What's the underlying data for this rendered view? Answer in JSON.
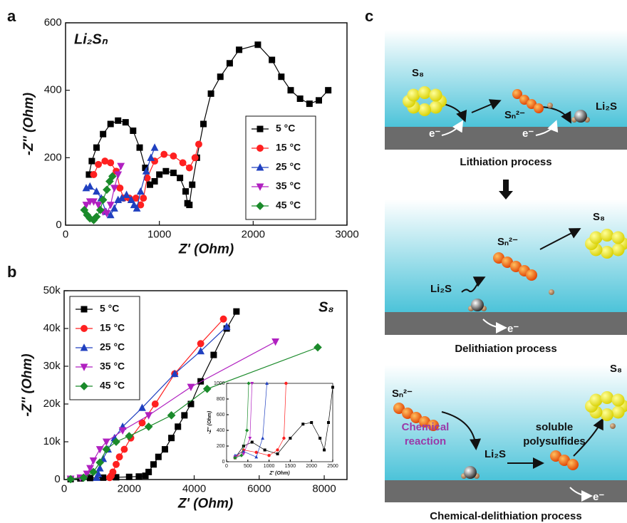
{
  "panel_labels": [
    "a",
    "b",
    "c"
  ],
  "chart_data": [
    {
      "type": "line",
      "annotation": "Li₂Sₙ",
      "x_label": "Z' (Ohm)",
      "y_label": "-Z'' (Ohm)",
      "xlim": [
        0,
        3000
      ],
      "xticks": [
        0,
        1000,
        2000,
        3000
      ],
      "ylim": [
        0,
        600
      ],
      "yticks": [
        0,
        200,
        400,
        600
      ],
      "legend": "right",
      "series": [
        {
          "name": "5 °C",
          "color": "#000000",
          "marker": "square",
          "x": [
            250,
            280,
            330,
            400,
            480,
            560,
            640,
            720,
            790,
            850,
            900,
            950,
            1000,
            1070,
            1150,
            1220,
            1280,
            1300,
            1320,
            1350,
            1400,
            1470,
            1550,
            1650,
            1750,
            1850,
            2050,
            2200,
            2300,
            2400,
            2500,
            2600,
            2700,
            2800
          ],
          "values": [
            150,
            190,
            230,
            270,
            300,
            310,
            305,
            280,
            230,
            170,
            120,
            130,
            150,
            160,
            155,
            140,
            100,
            65,
            60,
            120,
            200,
            300,
            390,
            440,
            480,
            520,
            535,
            490,
            440,
            400,
            375,
            360,
            370,
            400
          ]
        },
        {
          "name": "15 °C",
          "color": "#ff2020",
          "marker": "circle",
          "x": [
            300,
            350,
            420,
            480,
            540,
            580,
            620,
            680,
            750,
            800,
            830,
            870,
            950,
            1050,
            1150,
            1250,
            1320,
            1380,
            1420
          ],
          "values": [
            150,
            180,
            190,
            185,
            160,
            110,
            80,
            80,
            80,
            60,
            80,
            140,
            190,
            210,
            205,
            185,
            170,
            200,
            240
          ]
        },
        {
          "name": "25 °C",
          "color": "#2040c0",
          "marker": "triangle-up",
          "x": [
            220,
            260,
            330,
            380,
            430,
            480,
            520,
            560,
            600,
            650,
            700,
            730,
            760,
            800,
            860,
            910,
            950
          ],
          "values": [
            110,
            115,
            100,
            80,
            40,
            30,
            50,
            75,
            80,
            90,
            75,
            60,
            50,
            100,
            160,
            200,
            230
          ]
        },
        {
          "name": "35 °C",
          "color": "#b020c0",
          "marker": "triangle-down",
          "x": [
            220,
            260,
            300,
            350,
            400,
            440,
            480,
            520,
            560,
            590
          ],
          "values": [
            60,
            70,
            70,
            60,
            40,
            35,
            60,
            110,
            150,
            175
          ]
        },
        {
          "name": "45 °C",
          "color": "#1a8a2a",
          "marker": "diamond",
          "x": [
            200,
            230,
            260,
            300,
            330,
            370,
            400,
            440,
            470,
            500
          ],
          "values": [
            45,
            30,
            20,
            15,
            25,
            45,
            75,
            105,
            130,
            145
          ]
        }
      ]
    },
    {
      "type": "line",
      "annotation": "S₈",
      "x_label": "Z' (Ohm)",
      "y_label": "-Z'' (Ohm)",
      "xlim": [
        0,
        8700
      ],
      "xticks": [
        0,
        2000,
        4000,
        6000,
        8000
      ],
      "ylim": [
        0,
        50000
      ],
      "yticks": [
        0,
        {
          "value": 10000,
          "label": "10k"
        },
        {
          "value": 20000,
          "label": "20k"
        },
        {
          "value": 30000,
          "label": "30k"
        },
        {
          "value": 40000,
          "label": "40k"
        },
        {
          "value": 50000,
          "label": "50k"
        }
      ],
      "legend": "upper left",
      "series": [
        {
          "name": "5 °C",
          "color": "#000000",
          "marker": "square",
          "x": [
            200,
            500,
            800,
            1200,
            1600,
            2000,
            2300,
            2500,
            2600,
            2750,
            2900,
            3100,
            3300,
            3500,
            3700,
            3900,
            4200,
            4600,
            5000,
            5300
          ],
          "values": [
            100,
            300,
            400,
            500,
            600,
            700,
            800,
            1000,
            2000,
            4000,
            6000,
            8000,
            11000,
            14000,
            17000,
            20000,
            26000,
            33000,
            40000,
            44500
          ]
        },
        {
          "name": "15 °C",
          "color": "#ff2020",
          "marker": "circle",
          "x": [
            1400,
            1450,
            1500,
            1600,
            1700,
            1850,
            2050,
            2400,
            2800,
            3400,
            4200,
            4900
          ],
          "values": [
            500,
            1000,
            2000,
            4000,
            6000,
            8000,
            11000,
            15000,
            20000,
            28000,
            36000,
            42500
          ]
        },
        {
          "name": "25 °C",
          "color": "#2040c0",
          "marker": "triangle-up",
          "x": [
            1000,
            1050,
            1100,
            1200,
            1350,
            1550,
            1800,
            2400,
            3400,
            4200,
            5000
          ],
          "values": [
            500,
            1500,
            3000,
            5500,
            8000,
            11000,
            14000,
            19000,
            28000,
            34000,
            40500
          ]
        },
        {
          "name": "35 °C",
          "color": "#b020c0",
          "marker": "triangle-down",
          "x": [
            200,
            500,
            700,
            800,
            900,
            1100,
            1300,
            1800,
            2600,
            3900,
            6500
          ],
          "values": [
            200,
            500,
            1500,
            3000,
            5000,
            8000,
            10000,
            13000,
            17000,
            24500,
            36500
          ]
        },
        {
          "name": "45 °C",
          "color": "#1a8a2a",
          "marker": "diamond",
          "x": [
            200,
            600,
            900,
            1100,
            1300,
            1600,
            2000,
            2600,
            3300,
            4400,
            7800
          ],
          "values": [
            100,
            500,
            2000,
            4500,
            8000,
            10000,
            11500,
            14000,
            17000,
            24000,
            35000
          ]
        }
      ]
    },
    {
      "type": "line",
      "x_label": "Z' (Ohm)",
      "y_label": "-Z'' (Ohm)",
      "xlim": [
        0,
        2500
      ],
      "xticks": [
        0,
        500,
        1000,
        1500,
        2000,
        2500
      ],
      "ylim": [
        0,
        1000
      ],
      "yticks": [
        0,
        200,
        400,
        600,
        800,
        1000
      ],
      "series": [
        {
          "color": "#000000",
          "marker": "square",
          "x": [
            200,
            400,
            600,
            900,
            1200,
            1500,
            1800,
            2000,
            2200,
            2300,
            2400,
            2500
          ],
          "values": [
            50,
            200,
            250,
            150,
            100,
            300,
            480,
            500,
            300,
            150,
            500,
            950
          ]
        },
        {
          "color": "#ff2020",
          "marker": "circle",
          "x": [
            200,
            400,
            700,
            1000,
            1200,
            1350,
            1400
          ],
          "values": [
            50,
            150,
            120,
            80,
            150,
            300,
            1000
          ]
        },
        {
          "color": "#2040c0",
          "marker": "triangle-up",
          "x": [
            200,
            400,
            700,
            850,
            950
          ],
          "values": [
            80,
            130,
            60,
            300,
            1000
          ]
        },
        {
          "color": "#b020c0",
          "marker": "triangle-down",
          "x": [
            200,
            400,
            550,
            600
          ],
          "values": [
            60,
            100,
            300,
            1000
          ]
        },
        {
          "color": "#1a8a2a",
          "marker": "diamond",
          "x": [
            200,
            350,
            480,
            520
          ],
          "values": [
            50,
            80,
            400,
            1000
          ]
        }
      ]
    }
  ],
  "diagram": {
    "panels": [
      {
        "caption": "Lithiation process",
        "labels": [
          "S₈",
          "Sₙ²⁻",
          "Li₂S",
          "e⁻",
          "e⁻"
        ]
      },
      {
        "caption": "Delithiation process",
        "labels": [
          "Sₙ²⁻",
          "S₈",
          "Li₂S",
          "e⁻"
        ]
      },
      {
        "caption": "Chemical-delithiation process",
        "labels": [
          "Sₙ²⁻",
          "Li₂S",
          "S₈",
          "e⁻"
        ],
        "note_a": [
          "Chemical",
          "reaction"
        ],
        "note_b": [
          "soluble",
          "polysulfides"
        ]
      }
    ]
  }
}
